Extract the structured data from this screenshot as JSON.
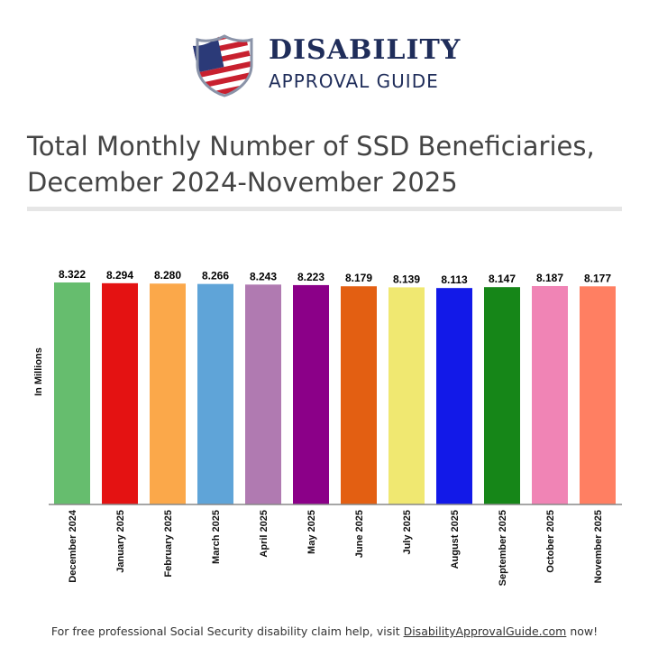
{
  "logo": {
    "line1": "DISABILITY",
    "line2": "APPROVAL GUIDE"
  },
  "title": "Total Monthly Number of SSD Beneficiaries, December 2024-November 2025",
  "footer": {
    "before": "For free professional Social Security disability claim help, visit ",
    "link": "DisabilityApprovalGuide.com",
    "after": " now!"
  },
  "chart_data": {
    "type": "bar",
    "title": "Total Monthly Number of SSD Beneficiaries, December 2024-November 2025",
    "xlabel": "",
    "ylabel": "In Millions",
    "ylim": [
      0,
      8.322
    ],
    "grid": false,
    "categories": [
      "December 2024",
      "January 2025",
      "February 2025",
      "March 2025",
      "April 2025",
      "May 2025",
      "June 2025",
      "July 2025",
      "August 2025",
      "September 2025",
      "October 2025",
      "November 2025"
    ],
    "values": [
      8.322,
      8.294,
      8.28,
      8.266,
      8.243,
      8.223,
      8.179,
      8.139,
      8.113,
      8.147,
      8.187,
      8.177
    ],
    "labels": [
      "8.322",
      "8.294",
      "8.280",
      "8.266",
      "8.243",
      "8.223",
      "8.179",
      "8.139",
      "8.113",
      "8.147",
      "8.187",
      "8.177"
    ],
    "colors": [
      "#66bd6e",
      "#e41212",
      "#fba84a",
      "#5fa4d8",
      "#b07ab1",
      "#8b0088",
      "#e35f12",
      "#f0e871",
      "#1219e8",
      "#168618",
      "#f084b5",
      "#ff7f62"
    ]
  }
}
